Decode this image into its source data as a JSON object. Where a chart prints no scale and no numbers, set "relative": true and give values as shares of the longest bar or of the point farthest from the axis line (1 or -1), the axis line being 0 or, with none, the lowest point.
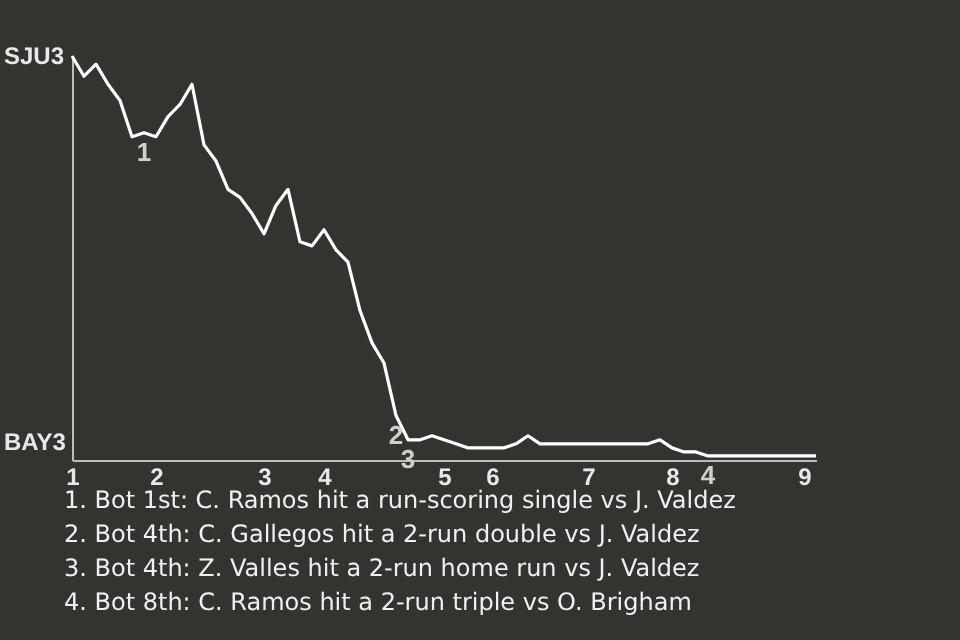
{
  "chart_data": {
    "type": "line",
    "relative": true,
    "categories": [
      "1",
      null,
      null,
      null,
      null,
      null,
      null,
      "2",
      null,
      null,
      null,
      null,
      null,
      null,
      null,
      null,
      "3",
      null,
      null,
      null,
      null,
      "4",
      null,
      null,
      null,
      null,
      null,
      null,
      null,
      null,
      null,
      "5",
      null,
      null,
      null,
      "6",
      null,
      null,
      null,
      null,
      null,
      null,
      null,
      "7",
      null,
      null,
      null,
      null,
      null,
      null,
      "8",
      null,
      null,
      null,
      null,
      null,
      null,
      null,
      null,
      null,
      null,
      "9",
      null
    ],
    "series": [
      {
        "color": "#ffffff",
        "values": [
          1,
          0.95,
          0.98,
          0.93,
          0.89,
          0.8,
          0.81,
          0.8,
          0.85,
          0.88,
          0.93,
          0.78,
          0.74,
          0.67,
          0.65,
          0.61,
          0.56,
          0.63,
          0.67,
          0.54,
          0.53,
          0.57,
          0.52,
          0.49,
          0.37,
          0.29,
          0.24,
          0.11,
          0.05,
          0.05,
          0.06,
          0.05,
          0.04,
          0.03,
          0.03,
          0.03,
          0.03,
          0.04,
          0.06,
          0.04,
          0.04,
          0.04,
          0.04,
          0.04,
          0.04,
          0.04,
          0.04,
          0.04,
          0.04,
          0.05,
          0.03,
          0.02,
          0.02,
          0.01,
          0.01,
          0.01,
          0.01,
          0.01,
          0.01,
          0.01,
          0.01,
          0.01,
          0.01
        ]
      }
    ],
    "annotations": [
      "SJU3",
      "BAY3",
      {
        "text": "1",
        "y": 0.81
      },
      {
        "text": "2",
        "y": 0.11
      },
      {
        "text": "3",
        "y": 0.05
      },
      {
        "text": "4",
        "y": 0.01
      },
      "1. Bot 1st: C. Ramos hit a run-scoring single vs J. Valdez",
      "2. Bot 4th: C. Gallegos hit a 2-run double vs J. Valdez",
      "3. Bot 4th: Z. Valles hit a 2-run home run vs J. Valdez",
      "4. Bot 8th: C. Ramos hit a 2-run triple vs O. Brigham"
    ]
  }
}
